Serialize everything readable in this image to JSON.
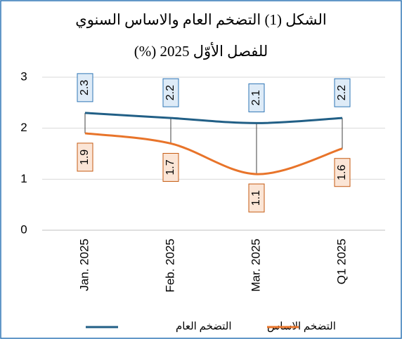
{
  "chart_data": {
    "type": "line",
    "title": "الشكل (1) التضخم العام والاساس السنوي",
    "subtitle": "للفصل الأوّل 2025 (%)",
    "categories": [
      "Jan. 2025",
      "Feb. 2025",
      "Mar. 2025",
      "Q1 2025"
    ],
    "series": [
      {
        "name": "التضخم العام",
        "color": "#215f86",
        "values": [
          2.3,
          2.2,
          2.1,
          2.2
        ]
      },
      {
        "name": "التضخم الاساس",
        "color": "#e8742a",
        "values": [
          1.9,
          1.7,
          1.1,
          1.6
        ]
      }
    ],
    "ylim": [
      0,
      3
    ],
    "yticks": [
      0,
      1,
      2,
      3
    ],
    "grid": true,
    "legend": "bottom"
  }
}
